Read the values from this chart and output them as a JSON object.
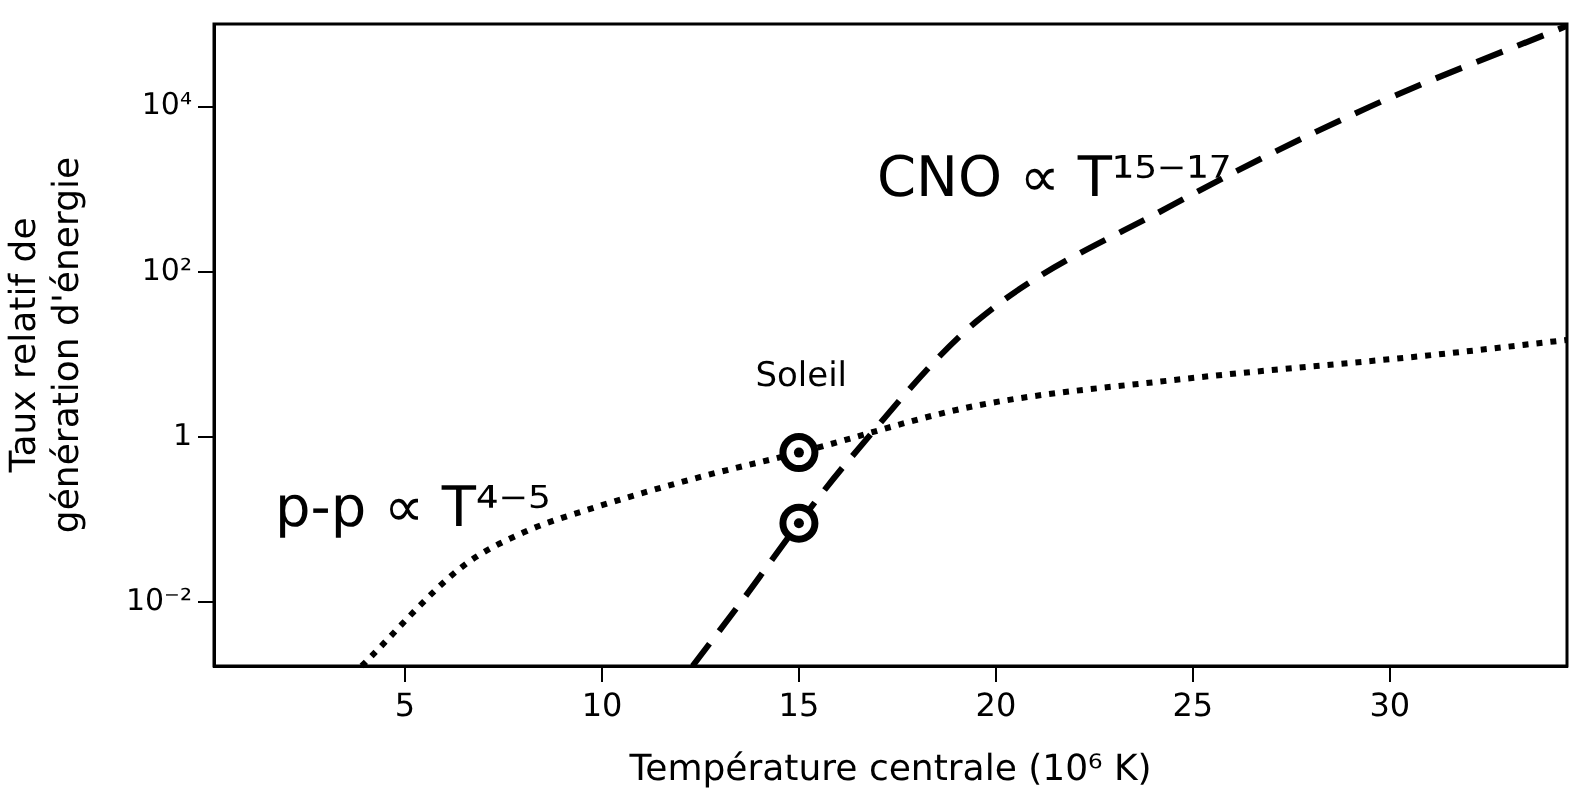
{
  "chart_data": {
    "type": "line",
    "xlabel": "Température centrale (10⁶ K)",
    "ylabel": "Taux relatif de\ngénération d'énergie",
    "log": "y",
    "grid": false,
    "legend": false,
    "marker": "none",
    "xlim": [
      0.15,
      34.5
    ],
    "xticks": [
      5,
      10,
      15,
      20,
      25,
      30
    ],
    "ylim": [
      0.0017,
      100000
    ],
    "yticks": [
      {
        "value": 0.01,
        "label": "10⁻²"
      },
      1,
      {
        "value": 100,
        "label": "10²"
      },
      {
        "value": 10000,
        "label": "10⁴"
      }
    ],
    "series": [
      {
        "color": "#000000",
        "line_style": "dotted",
        "x": [
          3.9,
          6.45,
          8,
          9.8,
          12.5,
          15,
          19.5,
          24.5,
          31.2,
          34.5
        ],
        "values": [
          0.0017,
          0.027,
          0.07,
          0.14,
          0.33,
          0.65,
          2.4,
          4.9,
          10,
          15
        ]
      },
      {
        "color": "#000000",
        "line_style": "dashed",
        "x": [
          12.3,
          13.65,
          15,
          16.3,
          19.5,
          24.5,
          29.5,
          34.5
        ],
        "values": [
          0.0017,
          0.012,
          0.091,
          0.55,
          25,
          650,
          10000,
          95000
        ]
      },
      {
        "type": "scatter",
        "color": "#000000",
        "marker": "circle",
        "x": [
          15,
          15
        ],
        "values": [
          0.65,
          0.091
        ]
      }
    ],
    "annotations": [
      "Soleil",
      "p-p ∝ T⁴⁻⁵",
      "CNO ∝ T¹⁵⁻¹⁷"
    ]
  }
}
